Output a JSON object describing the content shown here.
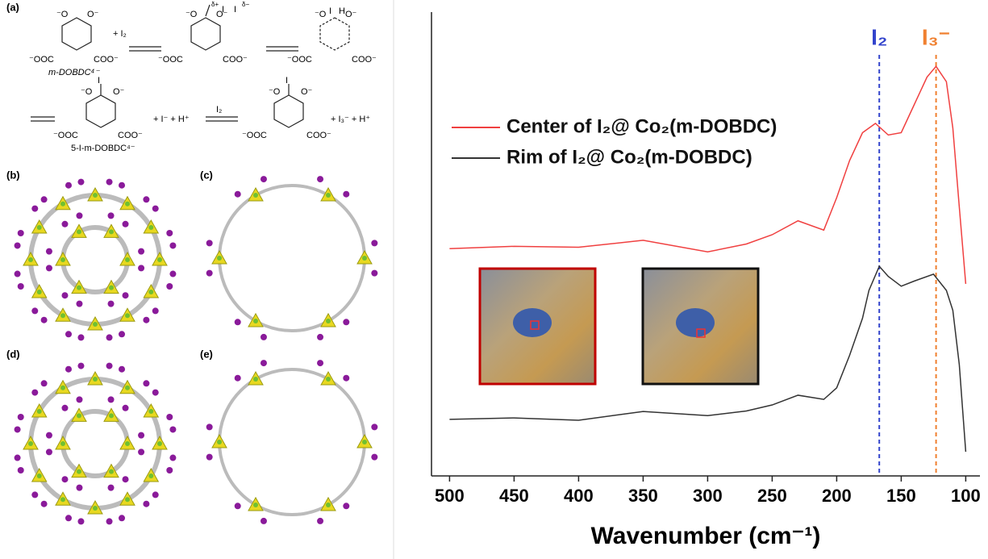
{
  "scheme": {
    "panel_a": "(a)",
    "ligand": "m-DOBDC⁴⁻",
    "plus_i2": "+ I₂",
    "delta_plus": "δ+",
    "delta_minus": "δ−",
    "iodo_ligand": "5-I-m-DOBDC⁴⁻",
    "plus_products": "+ I⁻ + H⁺",
    "reagent": "I₂",
    "plus_triiodide": "+ I₃⁻ + H⁺",
    "o_left": "⁻O",
    "o_right": "O⁻",
    "coo_left": "⁻OOC",
    "coo_right": "COO⁻",
    "iodine": "I",
    "hydrogen": "H",
    "panel_b": "(b)",
    "panel_c": "(c)",
    "panel_d": "(d)",
    "panel_e": "(e)"
  },
  "chart_data": {
    "type": "line",
    "x_label": "Wavenumber (cm⁻¹)",
    "xlim": [
      514,
      89
    ],
    "ylim": [
      0,
      100
    ],
    "xticks": [
      500,
      450,
      400,
      350,
      300,
      250,
      200,
      150,
      100
    ],
    "series": [
      {
        "name": "Center of I₂@ Co₂(m-DOBDC)",
        "color": "#f04040",
        "x": [
          500,
          450,
          400,
          350,
          300,
          270,
          250,
          230,
          210,
          200,
          190,
          180,
          170,
          160,
          150,
          140,
          130,
          123,
          115,
          110,
          105,
          100
        ],
        "values": [
          49,
          49.5,
          49.3,
          50.8,
          48.3,
          50,
          52,
          55,
          53,
          60,
          68,
          74,
          76,
          73.5,
          74,
          80,
          86,
          88.3,
          85,
          75,
          58,
          41.4
        ]
      },
      {
        "name": "Rim of I₂@ Co₂(m-DOBDC)",
        "color": "#333333",
        "x": [
          500,
          450,
          400,
          350,
          300,
          270,
          250,
          230,
          210,
          200,
          190,
          180,
          175,
          167,
          160,
          150,
          140,
          125,
          115,
          110,
          105,
          100
        ],
        "values": [
          12.2,
          12.5,
          12,
          13.9,
          13,
          14,
          15.3,
          17.4,
          16.5,
          19,
          26,
          34,
          40,
          45.2,
          43,
          40.9,
          42,
          43.5,
          40,
          35.7,
          24,
          5.2
        ]
      }
    ],
    "annotations": [
      {
        "text": "I₂",
        "x": 167,
        "color": "#3344cc"
      },
      {
        "text": "I₃⁻",
        "x": 123,
        "color": "#f08030"
      }
    ]
  }
}
